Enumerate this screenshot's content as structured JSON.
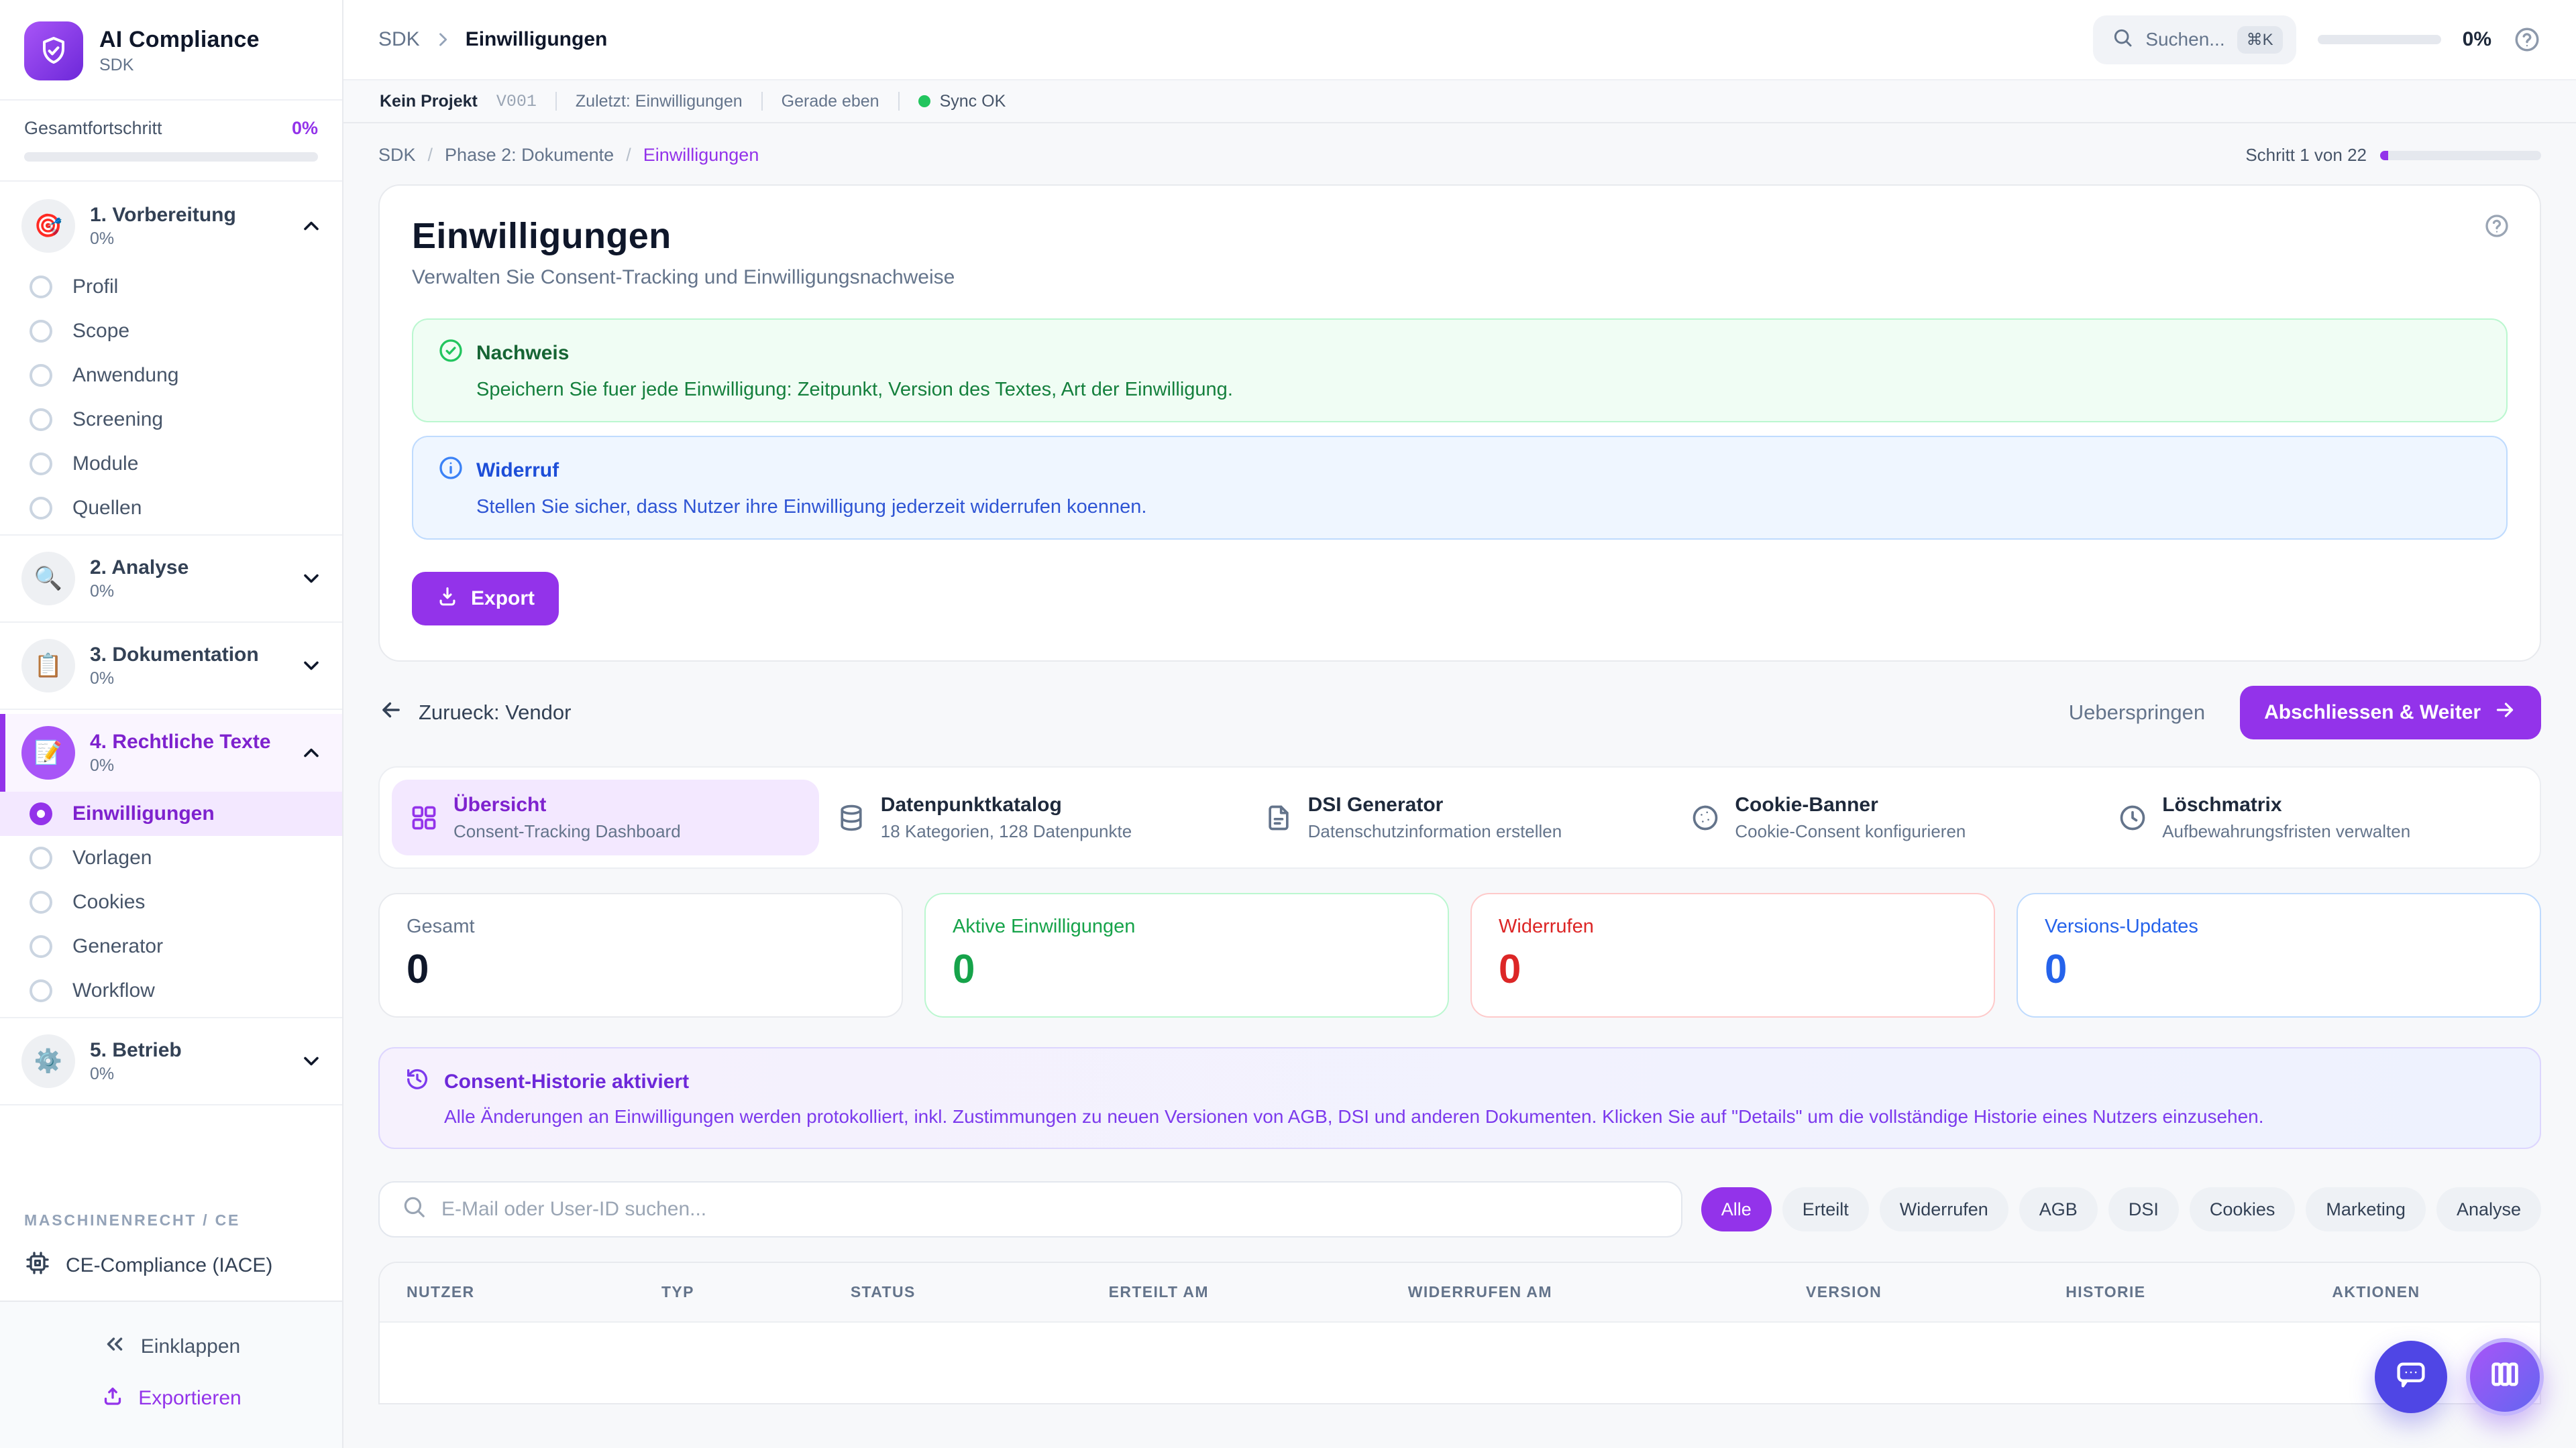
{
  "app": {
    "name": "AI Compliance",
    "subtitle": "SDK"
  },
  "sidebar": {
    "progress_label": "Gesamtfortschritt",
    "progress_value": "0%",
    "sections": [
      {
        "emoji": "🎯",
        "label": "1. Vorbereitung",
        "percent": "0%",
        "expanded": true,
        "active": false,
        "items": [
          {
            "label": "Profil"
          },
          {
            "label": "Scope"
          },
          {
            "label": "Anwendung"
          },
          {
            "label": "Screening"
          },
          {
            "label": "Module"
          },
          {
            "label": "Quellen"
          }
        ]
      },
      {
        "emoji": "🔍",
        "label": "2. Analyse",
        "percent": "0%",
        "expanded": false,
        "active": false,
        "items": []
      },
      {
        "emoji": "📋",
        "label": "3. Dokumentation",
        "percent": "0%",
        "expanded": false,
        "active": false,
        "items": []
      },
      {
        "emoji": "📝",
        "label": "4. Rechtliche Texte",
        "percent": "0%",
        "expanded": true,
        "active": true,
        "items": [
          {
            "label": "Einwilligungen",
            "active": true
          },
          {
            "label": "Vorlagen"
          },
          {
            "label": "Cookies"
          },
          {
            "label": "Generator"
          },
          {
            "label": "Workflow"
          }
        ]
      },
      {
        "emoji": "⚙️",
        "label": "5. Betrieb",
        "percent": "0%",
        "expanded": false,
        "active": false,
        "items": []
      }
    ],
    "group_label": "MASCHINENRECHT / CE",
    "ce_item": "CE-Compliance (IACE)",
    "collapse_label": "Einklappen",
    "export_label": "Exportieren"
  },
  "topbar": {
    "breadcrumb": {
      "root": "SDK",
      "current": "Einwilligungen"
    },
    "search_placeholder": "Suchen...",
    "search_shortcut": "⌘K",
    "progress_value": "0%"
  },
  "statusbar": {
    "project": "Kein Projekt",
    "version": "V001",
    "last": "Zuletzt: Einwilligungen",
    "time": "Gerade eben",
    "sync": "Sync OK"
  },
  "breadcrumb2": {
    "items": [
      "SDK",
      "Phase 2: Dokumente",
      "Einwilligungen"
    ],
    "step": "Schritt 1 von 22"
  },
  "page": {
    "title": "Einwilligungen",
    "subtitle": "Verwalten Sie Consent-Tracking und Einwilligungsnachweise",
    "callouts": [
      {
        "type": "success",
        "title": "Nachweis",
        "text": "Speichern Sie fuer jede Einwilligung: Zeitpunkt, Version des Textes, Art der Einwilligung."
      },
      {
        "type": "info",
        "title": "Widerruf",
        "text": "Stellen Sie sicher, dass Nutzer ihre Einwilligung jederzeit widerrufen koennen."
      }
    ],
    "export_label": "Export"
  },
  "wizard": {
    "back": "Zurueck: Vendor",
    "skip": "Ueberspringen",
    "next": "Abschliessen & Weiter"
  },
  "tabs": [
    {
      "icon": "grid",
      "title": "Übersicht",
      "subtitle": "Consent-Tracking Dashboard",
      "active": true
    },
    {
      "icon": "database",
      "title": "Datenpunktkatalog",
      "subtitle": "18 Kategorien, 128 Datenpunkte",
      "active": false
    },
    {
      "icon": "file",
      "title": "DSI Generator",
      "subtitle": "Datenschutzinformation erstellen",
      "active": false
    },
    {
      "icon": "cookie",
      "title": "Cookie-Banner",
      "subtitle": "Cookie-Consent konfigurieren",
      "active": false
    },
    {
      "icon": "clock",
      "title": "Löschmatrix",
      "subtitle": "Aufbewahrungsfristen verwalten",
      "active": false
    }
  ],
  "stats": [
    {
      "label": "Gesamt",
      "value": "0",
      "color": "default"
    },
    {
      "label": "Aktive Einwilligungen",
      "value": "0",
      "color": "green"
    },
    {
      "label": "Widerrufen",
      "value": "0",
      "color": "red"
    },
    {
      "label": "Versions-Updates",
      "value": "0",
      "color": "blue"
    }
  ],
  "history_banner": {
    "title": "Consent-Historie aktiviert",
    "text": "Alle Änderungen an Einwilligungen werden protokolliert, inkl. Zustimmungen zu neuen Versionen von AGB, DSI und anderen Dokumenten. Klicken Sie auf \"Details\" um die vollständige Historie eines Nutzers einzusehen."
  },
  "filter": {
    "search_placeholder": "E-Mail oder User-ID suchen...",
    "chips": [
      "Alle",
      "Erteilt",
      "Widerrufen",
      "AGB",
      "DSI",
      "Cookies",
      "Marketing",
      "Analyse"
    ],
    "active_chip": "Alle"
  },
  "table": {
    "columns": [
      "NUTZER",
      "TYP",
      "STATUS",
      "ERTEILT AM",
      "WIDERRUFEN AM",
      "VERSION",
      "HISTORIE",
      "AKTIONEN"
    ]
  }
}
